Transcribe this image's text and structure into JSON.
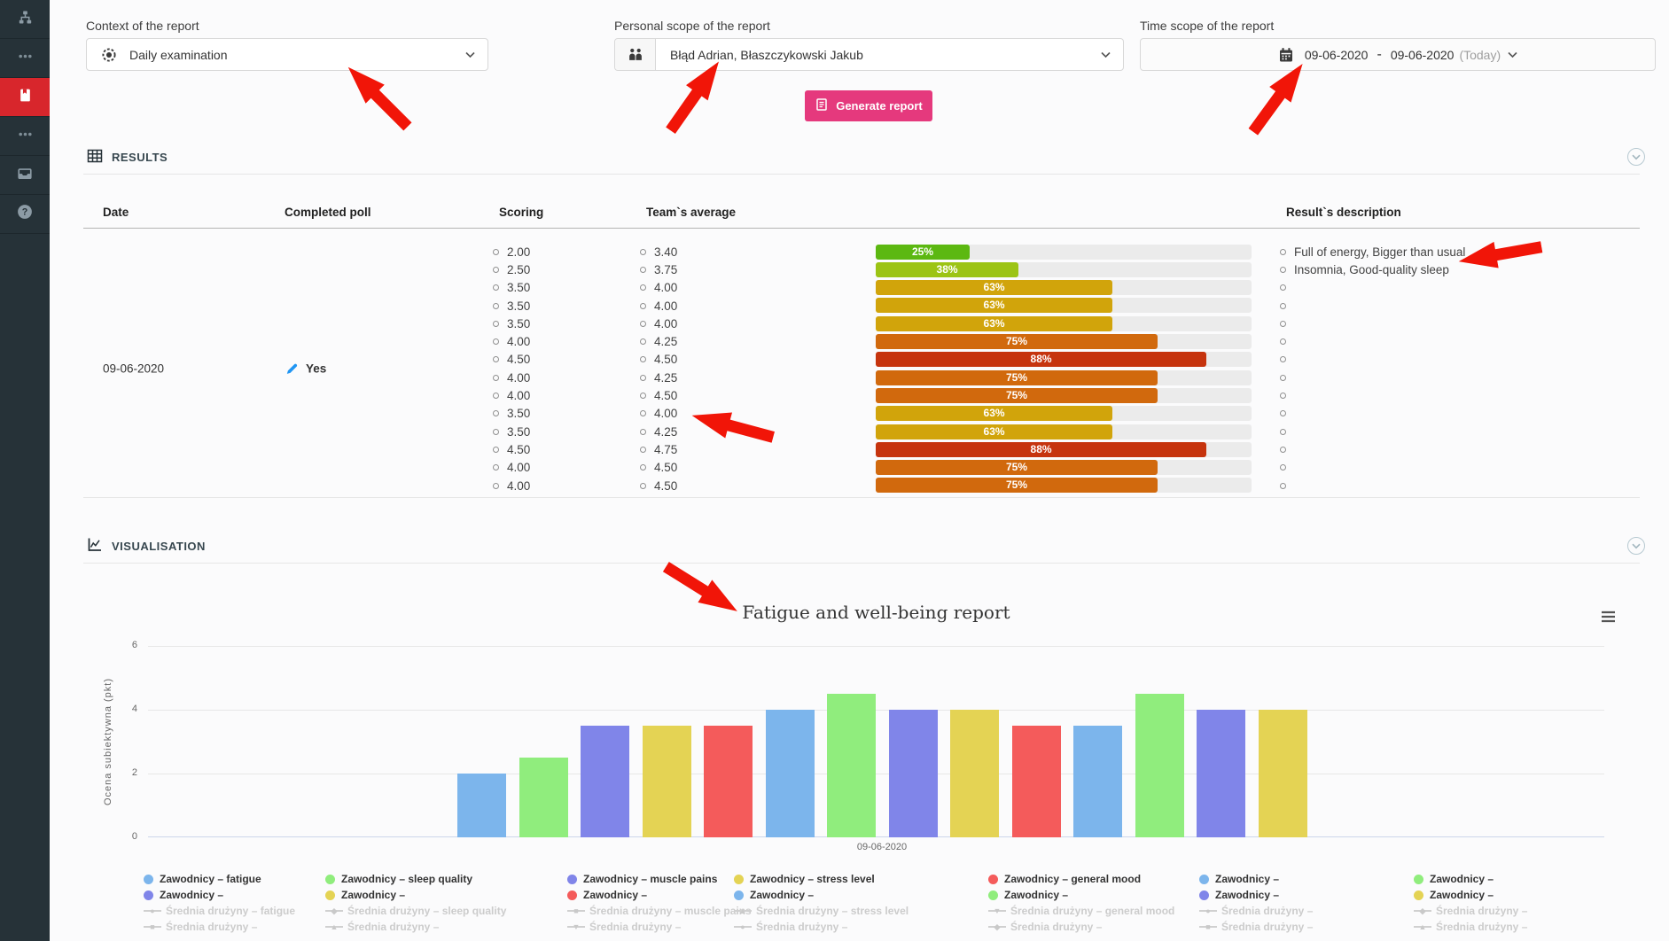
{
  "sidebar": {
    "items": [
      {
        "icon": "sitemap-icon",
        "active": false
      },
      {
        "icon": "ellipsis-icon",
        "active": false
      },
      {
        "icon": "reports-book-icon",
        "active": true
      },
      {
        "icon": "ellipsis-icon",
        "active": false
      },
      {
        "icon": "inbox-icon",
        "active": false
      },
      {
        "icon": "help-icon",
        "active": false
      }
    ]
  },
  "controls": {
    "context": {
      "label": "Context of the report",
      "value": "Daily examination",
      "icon": "scope-icon"
    },
    "personal": {
      "label": "Personal scope of the report",
      "value": "Błąd Adrian, Błaszczykowski Jakub",
      "icon": "people-icon"
    },
    "time": {
      "label": "Time scope of the report",
      "icon": "calendar-icon",
      "date_from": "09-06-2020",
      "separator": "-",
      "date_to": "09-06-2020",
      "suffix": "(Today)"
    },
    "generate": {
      "label": "Generate report",
      "icon": "report-icon"
    }
  },
  "results": {
    "section_title": "RESULTS",
    "columns": {
      "date": "Date",
      "completed": "Completed poll",
      "scoring": "Scoring",
      "team_avg": "Team`s average",
      "description": "Result`s description"
    },
    "row": {
      "date": "09-06-2020",
      "completed": "Yes"
    },
    "entries": [
      {
        "scoring": "2.00",
        "team_avg": "3.40",
        "percent": 25,
        "percent_color": "#5cb811",
        "description": "Full of energy, Bigger than usual"
      },
      {
        "scoring": "2.50",
        "team_avg": "3.75",
        "percent": 38,
        "percent_color": "#9cc414",
        "description": "Insomnia, Good-quality sleep"
      },
      {
        "scoring": "3.50",
        "team_avg": "4.00",
        "percent": 63,
        "percent_color": "#d1a40b",
        "description": ""
      },
      {
        "scoring": "3.50",
        "team_avg": "4.00",
        "percent": 63,
        "percent_color": "#d1a40b",
        "description": ""
      },
      {
        "scoring": "3.50",
        "team_avg": "4.00",
        "percent": 63,
        "percent_color": "#d1a40b",
        "description": ""
      },
      {
        "scoring": "4.00",
        "team_avg": "4.25",
        "percent": 75,
        "percent_color": "#d1690d",
        "description": ""
      },
      {
        "scoring": "4.50",
        "team_avg": "4.50",
        "percent": 88,
        "percent_color": "#c6340e",
        "description": ""
      },
      {
        "scoring": "4.00",
        "team_avg": "4.25",
        "percent": 75,
        "percent_color": "#d1690d",
        "description": ""
      },
      {
        "scoring": "4.00",
        "team_avg": "4.50",
        "percent": 75,
        "percent_color": "#d1690d",
        "description": ""
      },
      {
        "scoring": "3.50",
        "team_avg": "4.00",
        "percent": 63,
        "percent_color": "#d1a40b",
        "description": ""
      },
      {
        "scoring": "3.50",
        "team_avg": "4.25",
        "percent": 63,
        "percent_color": "#d1a40b",
        "description": ""
      },
      {
        "scoring": "4.50",
        "team_avg": "4.75",
        "percent": 88,
        "percent_color": "#c6340e",
        "description": ""
      },
      {
        "scoring": "4.00",
        "team_avg": "4.50",
        "percent": 75,
        "percent_color": "#d1690d",
        "description": ""
      },
      {
        "scoring": "4.00",
        "team_avg": "4.50",
        "percent": 75,
        "percent_color": "#d1690d",
        "description": ""
      }
    ]
  },
  "visualisation": {
    "section_title": "VISUALISATION"
  },
  "chart_data": {
    "type": "bar",
    "title": "Fatigue and well-being report",
    "categories": [
      "09-06-2020"
    ],
    "xlabel": "",
    "ylabel": "Ocena subiektywna (pkt)",
    "ylim": [
      0,
      6
    ],
    "yticks": [
      0,
      2,
      4,
      6
    ],
    "grid": true,
    "legend_position": "bottom",
    "series": [
      {
        "name": "Zawodnicy – fatigue",
        "color": "#7cb5ec",
        "values": [
          2
        ]
      },
      {
        "name": "Zawodnicy – sleep quality",
        "color": "#90ed7d",
        "values": [
          2.5
        ]
      },
      {
        "name": "Zawodnicy – muscle pains",
        "color": "#8085e9",
        "values": [
          3.5
        ]
      },
      {
        "name": "Zawodnicy – stress level",
        "color": "#e4d354",
        "values": [
          3.5
        ]
      },
      {
        "name": "Zawodnicy – general mood",
        "color": "#f45b5b",
        "values": [
          3.5
        ]
      },
      {
        "name": "Zawodnicy –",
        "color": "#7cb5ec",
        "values": [
          4
        ]
      },
      {
        "name": "Zawodnicy –",
        "color": "#90ed7d",
        "values": [
          4.5
        ]
      },
      {
        "name": "Zawodnicy –",
        "color": "#8085e9",
        "values": [
          4
        ]
      },
      {
        "name": "Zawodnicy –",
        "color": "#e4d354",
        "values": [
          4
        ]
      },
      {
        "name": "Zawodnicy –",
        "color": "#f45b5b",
        "values": [
          3.5
        ]
      },
      {
        "name": "Zawodnicy –",
        "color": "#7cb5ec",
        "values": [
          3.5
        ]
      },
      {
        "name": "Zawodnicy –",
        "color": "#90ed7d",
        "values": [
          4.5
        ]
      },
      {
        "name": "Zawodnicy –",
        "color": "#8085e9",
        "values": [
          4
        ]
      },
      {
        "name": "Zawodnicy –",
        "color": "#e4d354",
        "values": [
          4
        ]
      }
    ],
    "disabled_series": [
      {
        "name": "Średnia drużyny – fatigue",
        "marker": "circle"
      },
      {
        "name": "Średnia drużyny – sleep quality",
        "marker": "diamond"
      },
      {
        "name": "Średnia drużyny – muscle pains",
        "marker": "square"
      },
      {
        "name": "Średnia drużyny – stress level",
        "marker": "triangle"
      },
      {
        "name": "Średnia drużyny – general mood",
        "marker": "triangle-down"
      },
      {
        "name": "Średnia drużyny –",
        "marker": "circle"
      },
      {
        "name": "Średnia drużyny –",
        "marker": "diamond"
      },
      {
        "name": "Średnia drużyny –",
        "marker": "square"
      },
      {
        "name": "Średnia drużyny –",
        "marker": "triangle"
      },
      {
        "name": "Średnia drużyny –",
        "marker": "triangle-down"
      },
      {
        "name": "Średnia drużyny –",
        "marker": "circle"
      },
      {
        "name": "Średnia drużyny –",
        "marker": "diamond"
      },
      {
        "name": "Średnia drużyny –",
        "marker": "square"
      },
      {
        "name": "Średnia drużyny –",
        "marker": "triangle"
      }
    ]
  }
}
